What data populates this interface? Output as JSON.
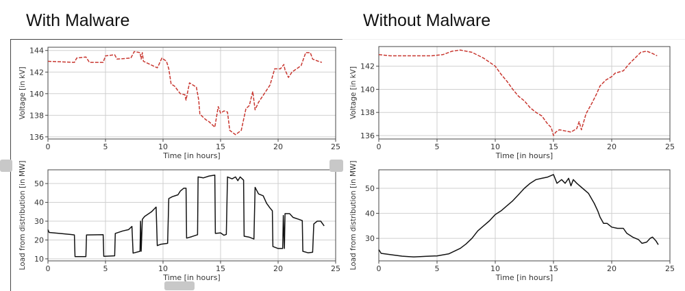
{
  "panels": {
    "left_title": "With Malware",
    "right_title": "Without Malware"
  },
  "colors": {
    "voltage": "#c8362f",
    "load": "#111111",
    "grid": "#cfcfcf",
    "axes": "#444444"
  },
  "chart_data": [
    {
      "type": "line",
      "panel": "With Malware",
      "title": "",
      "xlabel": "Time [in hours]",
      "ylabel": "Voltage [in kV]",
      "xlim": [
        0,
        25
      ],
      "ylim": [
        135.8,
        144.3
      ],
      "xticks": [
        0,
        5,
        10,
        15,
        20,
        25
      ],
      "yticks": [
        136,
        138,
        140,
        142,
        144
      ],
      "grid": true,
      "line_style": "dashed",
      "color": "#c8362f",
      "points": [
        [
          0,
          143
        ],
        [
          2.3,
          142.9
        ],
        [
          2.5,
          143.3
        ],
        [
          3.3,
          143.4
        ],
        [
          3.6,
          142.9
        ],
        [
          4.8,
          142.9
        ],
        [
          5,
          143.5
        ],
        [
          5.8,
          143.6
        ],
        [
          6,
          143.2
        ],
        [
          7.2,
          143.3
        ],
        [
          7.5,
          143.9
        ],
        [
          8,
          143.8
        ],
        [
          8.1,
          143.2
        ],
        [
          8.2,
          143.8
        ],
        [
          8.3,
          143
        ],
        [
          9.5,
          142.4
        ],
        [
          9.6,
          142.6
        ],
        [
          9.9,
          143.3
        ],
        [
          10.3,
          143
        ],
        [
          10.5,
          142.3
        ],
        [
          10.7,
          140.9
        ],
        [
          11,
          140.7
        ],
        [
          11.5,
          140
        ],
        [
          11.9,
          139.9
        ],
        [
          12,
          139.4
        ],
        [
          12.3,
          141
        ],
        [
          12.9,
          140.6
        ],
        [
          13.1,
          139.4
        ],
        [
          13.2,
          138.1
        ],
        [
          13.7,
          137.6
        ],
        [
          14,
          137.4
        ],
        [
          14.5,
          136.9
        ],
        [
          14.8,
          138.8
        ],
        [
          15,
          138.2
        ],
        [
          15.3,
          138.4
        ],
        [
          15.6,
          138.3
        ],
        [
          15.8,
          136.6
        ],
        [
          16.3,
          136.2
        ],
        [
          16.8,
          136.6
        ],
        [
          17.2,
          138.6
        ],
        [
          17.5,
          138.9
        ],
        [
          17.8,
          140.2
        ],
        [
          18,
          138.5
        ],
        [
          18.3,
          139.2
        ],
        [
          18.8,
          140
        ],
        [
          19.3,
          140.8
        ],
        [
          19.7,
          142.3
        ],
        [
          20.2,
          142.3
        ],
        [
          20.5,
          142.7
        ],
        [
          20.6,
          142.2
        ],
        [
          20.9,
          141.5
        ],
        [
          21.2,
          142
        ],
        [
          22,
          142.6
        ],
        [
          22.4,
          143.8
        ],
        [
          22.8,
          143.8
        ],
        [
          23,
          143.2
        ],
        [
          23.5,
          143
        ],
        [
          23.8,
          142.9
        ]
      ]
    },
    {
      "type": "line",
      "panel": "With Malware",
      "title": "",
      "xlabel": "Time [in hours]",
      "ylabel": "Load from distribution [in MW]",
      "xlim": [
        0,
        25
      ],
      "ylim": [
        8.9,
        57.3
      ],
      "xticks": [
        0,
        5,
        10,
        15,
        20,
        25
      ],
      "yticks": [
        10,
        20,
        30,
        40,
        50
      ],
      "grid": true,
      "line_style": "solid",
      "color": "#111111",
      "points": [
        [
          0,
          25.5
        ],
        [
          0.1,
          24
        ],
        [
          1,
          23.5
        ],
        [
          2,
          22.9
        ],
        [
          2.3,
          22.7
        ],
        [
          2.35,
          11.2
        ],
        [
          3.3,
          11.2
        ],
        [
          3.35,
          22.7
        ],
        [
          4.8,
          22.8
        ],
        [
          4.85,
          11.3
        ],
        [
          5.8,
          11.6
        ],
        [
          5.85,
          23.5
        ],
        [
          6.5,
          24.8
        ],
        [
          7,
          25.5
        ],
        [
          7.3,
          27.2
        ],
        [
          7.4,
          13
        ],
        [
          8,
          14
        ],
        [
          8.05,
          30
        ],
        [
          8.1,
          14
        ],
        [
          8.2,
          31
        ],
        [
          8.4,
          32.5
        ],
        [
          9,
          35
        ],
        [
          9.4,
          37.5
        ],
        [
          9.5,
          17
        ],
        [
          9.8,
          17.7
        ],
        [
          10.4,
          18.2
        ],
        [
          10.5,
          42
        ],
        [
          10.8,
          43
        ],
        [
          11.3,
          44
        ],
        [
          11.5,
          46
        ],
        [
          11.8,
          47.5
        ],
        [
          12,
          47.5
        ],
        [
          12.05,
          21
        ],
        [
          12.5,
          21.8
        ],
        [
          13,
          22.8
        ],
        [
          13.05,
          53.5
        ],
        [
          13.5,
          53
        ],
        [
          14,
          54
        ],
        [
          14.5,
          54.5
        ],
        [
          14.55,
          23.5
        ],
        [
          15,
          23.8
        ],
        [
          15.3,
          22.5
        ],
        [
          15.5,
          23
        ],
        [
          15.6,
          53.5
        ],
        [
          16,
          52.5
        ],
        [
          16.3,
          53.5
        ],
        [
          16.5,
          51.5
        ],
        [
          16.7,
          53.5
        ],
        [
          17,
          51.8
        ],
        [
          17.05,
          22
        ],
        [
          17.5,
          21.5
        ],
        [
          17.9,
          20.5
        ],
        [
          18,
          48
        ],
        [
          18.3,
          44.5
        ],
        [
          18.7,
          43.5
        ],
        [
          19,
          39.5
        ],
        [
          19.3,
          37
        ],
        [
          19.5,
          35.5
        ],
        [
          19.55,
          16.5
        ],
        [
          20,
          15.5
        ],
        [
          20.4,
          15.5
        ],
        [
          20.45,
          33
        ],
        [
          20.55,
          15.5
        ],
        [
          20.6,
          34
        ],
        [
          21,
          34
        ],
        [
          21.3,
          32
        ],
        [
          21.8,
          31
        ],
        [
          22.1,
          30.3
        ],
        [
          22.15,
          14
        ],
        [
          22.6,
          13.2
        ],
        [
          23,
          13.5
        ],
        [
          23.1,
          28.5
        ],
        [
          23.4,
          30
        ],
        [
          23.7,
          30
        ],
        [
          24,
          27.5
        ]
      ]
    },
    {
      "type": "line",
      "panel": "Without Malware",
      "title": "",
      "xlabel": "Time [in hours]",
      "ylabel": "Voltage [in kV]",
      "xlim": [
        0,
        25
      ],
      "ylim": [
        135.7,
        143.7
      ],
      "xticks": [
        0,
        5,
        10,
        15,
        20,
        25
      ],
      "yticks": [
        136,
        138,
        140,
        142
      ],
      "grid": true,
      "line_style": "dashed",
      "color": "#c8362f",
      "points": [
        [
          0,
          143
        ],
        [
          1,
          142.9
        ],
        [
          3,
          142.9
        ],
        [
          4.5,
          142.9
        ],
        [
          5.5,
          143
        ],
        [
          6.3,
          143.3
        ],
        [
          7,
          143.4
        ],
        [
          8,
          143.2
        ],
        [
          9,
          142.7
        ],
        [
          10,
          142
        ],
        [
          10.5,
          141.3
        ],
        [
          11,
          140.7
        ],
        [
          11.5,
          140
        ],
        [
          12,
          139.4
        ],
        [
          12.5,
          139
        ],
        [
          13,
          138.4
        ],
        [
          13.5,
          138
        ],
        [
          14,
          137.7
        ],
        [
          14.5,
          137
        ],
        [
          14.8,
          136.7
        ],
        [
          15,
          136
        ],
        [
          15.2,
          136.3
        ],
        [
          15.5,
          136.5
        ],
        [
          16,
          136.4
        ],
        [
          16.5,
          136.3
        ],
        [
          17,
          136.6
        ],
        [
          17.2,
          137.2
        ],
        [
          17.4,
          136.5
        ],
        [
          17.6,
          137.2
        ],
        [
          17.8,
          137.9
        ],
        [
          18.3,
          138.8
        ],
        [
          18.7,
          139.6
        ],
        [
          19,
          140.3
        ],
        [
          19.5,
          140.8
        ],
        [
          20,
          141.1
        ],
        [
          20.3,
          141.4
        ],
        [
          21,
          141.6
        ],
        [
          21.5,
          142.2
        ],
        [
          22,
          142.7
        ],
        [
          22.5,
          143.2
        ],
        [
          23,
          143.3
        ],
        [
          23.5,
          143.1
        ],
        [
          23.9,
          142.9
        ]
      ]
    },
    {
      "type": "line",
      "panel": "Without Malware",
      "title": "",
      "xlabel": "Time [in hours]",
      "ylabel": "Load from distribution [in MW]",
      "xlim": [
        0,
        25
      ],
      "ylim": [
        21,
        57.4
      ],
      "xticks": [
        0,
        5,
        10,
        15,
        20,
        25
      ],
      "yticks": [
        30,
        40,
        50
      ],
      "grid": true,
      "line_style": "solid",
      "color": "#111111",
      "points": [
        [
          0,
          25.5
        ],
        [
          0.2,
          24
        ],
        [
          1,
          23.5
        ],
        [
          2,
          22.9
        ],
        [
          3,
          22.6
        ],
        [
          4,
          22.8
        ],
        [
          5,
          23
        ],
        [
          6,
          23.8
        ],
        [
          7,
          26
        ],
        [
          7.5,
          27.8
        ],
        [
          8,
          30
        ],
        [
          8.5,
          33
        ],
        [
          9,
          35
        ],
        [
          9.5,
          37
        ],
        [
          10,
          39.5
        ],
        [
          10.5,
          41
        ],
        [
          11,
          43
        ],
        [
          11.5,
          45
        ],
        [
          12,
          47.5
        ],
        [
          12.5,
          50
        ],
        [
          13,
          52
        ],
        [
          13.5,
          53.5
        ],
        [
          14,
          54
        ],
        [
          14.5,
          54.5
        ],
        [
          15,
          55.5
        ],
        [
          15.3,
          52
        ],
        [
          15.7,
          53.5
        ],
        [
          16,
          52
        ],
        [
          16.3,
          54
        ],
        [
          16.5,
          51
        ],
        [
          16.7,
          53.5
        ],
        [
          17,
          52
        ],
        [
          17.5,
          50
        ],
        [
          18,
          48
        ],
        [
          18.5,
          44
        ],
        [
          18.8,
          41
        ],
        [
          19,
          38.5
        ],
        [
          19.3,
          36
        ],
        [
          19.6,
          36
        ],
        [
          20,
          34.5
        ],
        [
          20.5,
          34
        ],
        [
          21,
          34
        ],
        [
          21.3,
          32
        ],
        [
          21.8,
          30.5
        ],
        [
          22.3,
          29.5
        ],
        [
          22.6,
          28
        ],
        [
          23,
          28.5
        ],
        [
          23.3,
          30
        ],
        [
          23.5,
          30.5
        ],
        [
          23.8,
          29
        ],
        [
          24,
          27.5
        ]
      ]
    }
  ]
}
